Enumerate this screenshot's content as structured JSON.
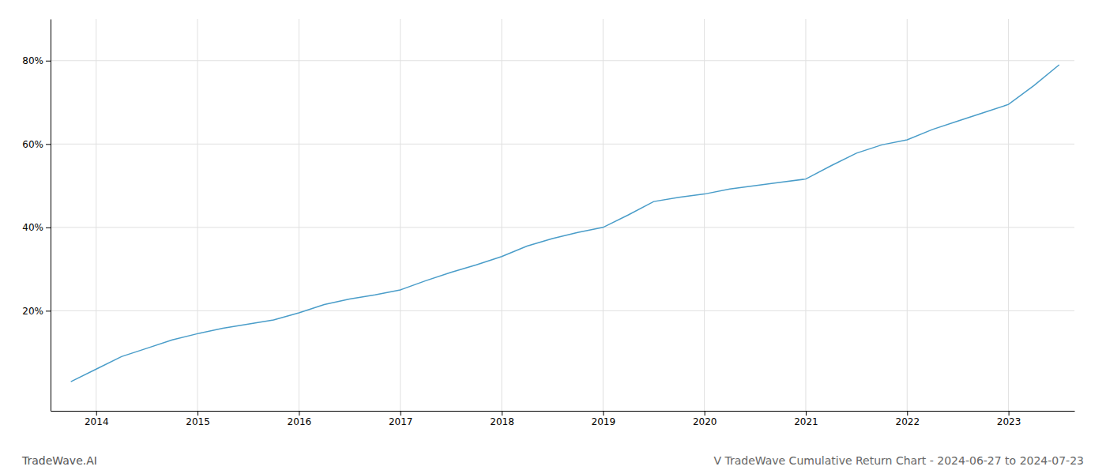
{
  "chart_data": {
    "type": "line",
    "title": "V TradeWave Cumulative Return Chart - 2024-06-27 to 2024-07-23",
    "annotations": [
      "TradeWave.AI"
    ],
    "x": [
      2013.75,
      2014.0,
      2014.25,
      2014.5,
      2014.75,
      2015.0,
      2015.25,
      2015.5,
      2015.75,
      2016.0,
      2016.25,
      2016.5,
      2016.75,
      2017.0,
      2017.25,
      2017.5,
      2017.75,
      2018.0,
      2018.25,
      2018.5,
      2018.75,
      2019.0,
      2019.25,
      2019.5,
      2019.75,
      2020.0,
      2020.25,
      2020.5,
      2020.75,
      2021.0,
      2021.25,
      2021.5,
      2021.75,
      2022.0,
      2022.25,
      2022.5,
      2022.75,
      2023.0,
      2023.25,
      2023.5
    ],
    "values": [
      0.03,
      0.06,
      0.09,
      0.11,
      0.13,
      0.145,
      0.158,
      0.168,
      0.178,
      0.195,
      0.215,
      0.228,
      0.238,
      0.25,
      0.272,
      0.292,
      0.31,
      0.33,
      0.355,
      0.373,
      0.388,
      0.4,
      0.43,
      0.462,
      0.472,
      0.48,
      0.492,
      0.5,
      0.508,
      0.516,
      0.548,
      0.578,
      0.598,
      0.61,
      0.635,
      0.655,
      0.675,
      0.695,
      0.74,
      0.79
    ],
    "color": "#4a9dc9",
    "xlim": [
      2013.55,
      2023.65
    ],
    "xticks": [
      2014,
      2015,
      2016,
      2017,
      2018,
      2019,
      2020,
      2021,
      2022,
      2023
    ],
    "ylim": [
      -0.04,
      0.9
    ],
    "yticks": [
      {
        "value": 0.2,
        "label": "20%"
      },
      {
        "value": 0.4,
        "label": "40%"
      },
      {
        "value": 0.6,
        "label": "60%"
      },
      {
        "value": 0.8,
        "label": "80%"
      }
    ],
    "grid": true
  }
}
